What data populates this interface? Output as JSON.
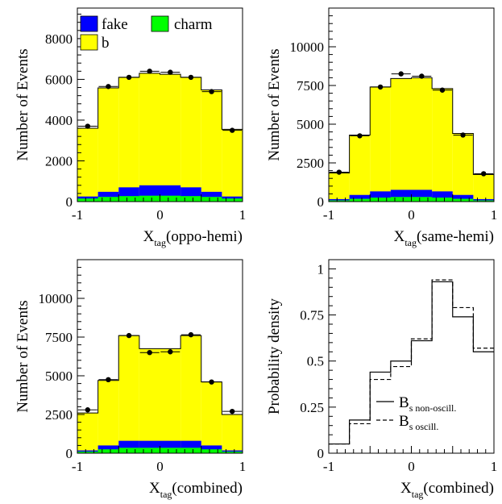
{
  "colors": {
    "b": "#ffff00",
    "fake": "#0000ff",
    "charm": "#00ff00",
    "frame": "#000000"
  },
  "chart_data": [
    {
      "type": "histogram",
      "stacked": true,
      "ylabel": "Number of Events",
      "xlabel": {
        "main": "X",
        "sub": "tag",
        "rest": "(oppo-hemi)"
      },
      "xlim": [
        -1,
        1
      ],
      "ylim": [
        0,
        9500
      ],
      "xticks": [
        -1,
        0,
        1
      ],
      "xtick_labels": [
        "-1",
        "0",
        "1"
      ],
      "yticks": [
        0,
        2000,
        4000,
        6000,
        8000
      ],
      "ytick_labels": [
        "0",
        "2000",
        "4000",
        "6000",
        "8000"
      ],
      "bin_edges": [
        -1,
        -0.75,
        -0.5,
        -0.25,
        0,
        0.25,
        0.5,
        0.75,
        1
      ],
      "series": [
        {
          "name": "charm",
          "color_key": "charm",
          "values": [
            150,
            230,
            270,
            290,
            290,
            270,
            230,
            150
          ]
        },
        {
          "name": "fake",
          "color_key": "fake",
          "values": [
            100,
            250,
            430,
            510,
            510,
            430,
            250,
            100
          ]
        },
        {
          "name": "b",
          "color_key": "b",
          "values": [
            3350,
            5100,
            5400,
            5500,
            5450,
            5400,
            5000,
            3300
          ]
        }
      ],
      "data_points": {
        "x": [
          -0.875,
          -0.625,
          -0.375,
          -0.125,
          0.125,
          0.375,
          0.625,
          0.875
        ],
        "y": [
          3700,
          5650,
          6100,
          6400,
          6350,
          6100,
          5400,
          3500
        ]
      },
      "legend": {
        "placement": "top-left",
        "entries": [
          {
            "label": "fake",
            "color_key": "fake"
          },
          {
            "label": "charm",
            "color_key": "charm"
          },
          {
            "label": "b",
            "color_key": "b"
          }
        ]
      }
    },
    {
      "type": "histogram",
      "stacked": true,
      "ylabel": "Number of Events",
      "xlabel": {
        "main": "X",
        "sub": "tag",
        "rest": "(same-hemi)"
      },
      "xlim": [
        -1,
        1
      ],
      "ylim": [
        0,
        12500
      ],
      "xticks": [
        -1,
        0,
        1
      ],
      "xtick_labels": [
        "-1",
        "0",
        "1"
      ],
      "yticks": [
        0,
        2500,
        5000,
        7500,
        10000
      ],
      "ytick_labels": [
        "0",
        "2500",
        "5000",
        "7500",
        "10000"
      ],
      "bin_edges": [
        -1,
        -0.75,
        -0.5,
        -0.25,
        0,
        0.25,
        0.5,
        0.75,
        1
      ],
      "series": [
        {
          "name": "charm",
          "color_key": "charm",
          "values": [
            80,
            180,
            260,
            300,
            300,
            260,
            180,
            80
          ]
        },
        {
          "name": "fake",
          "color_key": "fake",
          "values": [
            80,
            250,
            400,
            460,
            460,
            400,
            250,
            80
          ]
        },
        {
          "name": "b",
          "color_key": "b",
          "values": [
            1690,
            3870,
            6740,
            7190,
            7240,
            6640,
            3970,
            1590
          ]
        }
      ],
      "data_points": {
        "x": [
          -0.875,
          -0.625,
          -0.375,
          -0.125,
          0.125,
          0.375,
          0.625,
          0.875
        ],
        "y": [
          1900,
          4250,
          7400,
          8250,
          8100,
          7200,
          4300,
          1800
        ]
      }
    },
    {
      "type": "histogram",
      "stacked": true,
      "ylabel": "Number of Events",
      "xlabel": {
        "main": "X",
        "sub": "tag",
        "rest": "(combined)"
      },
      "xlim": [
        -1,
        1
      ],
      "ylim": [
        0,
        12500
      ],
      "xticks": [
        -1,
        0,
        1
      ],
      "xtick_labels": [
        "-1",
        "0",
        "1"
      ],
      "yticks": [
        0,
        2500,
        5000,
        7500,
        10000
      ],
      "ytick_labels": [
        "0",
        "2500",
        "5000",
        "7500",
        "10000"
      ],
      "bin_edges": [
        -1,
        -0.75,
        -0.5,
        -0.25,
        0,
        0.25,
        0.5,
        0.75,
        1
      ],
      "series": [
        {
          "name": "charm",
          "color_key": "charm",
          "values": [
            100,
            250,
            350,
            350,
            350,
            350,
            250,
            100
          ]
        },
        {
          "name": "fake",
          "color_key": "fake",
          "values": [
            80,
            250,
            450,
            450,
            450,
            450,
            250,
            80
          ]
        },
        {
          "name": "b",
          "color_key": "b",
          "values": [
            2420,
            4200,
            6800,
            5950,
            5950,
            6800,
            4100,
            2320
          ]
        }
      ],
      "data_points": {
        "x": [
          -0.875,
          -0.625,
          -0.375,
          -0.125,
          0.125,
          0.375,
          0.625,
          0.875
        ],
        "y": [
          2800,
          4750,
          7600,
          6500,
          6550,
          7650,
          4600,
          2700
        ]
      }
    },
    {
      "type": "step",
      "ylabel": "Probability density",
      "xlabel": {
        "main": "X",
        "sub": "tag",
        "rest": "(combined)"
      },
      "xlim": [
        -1,
        1
      ],
      "ylim": [
        0,
        1.05
      ],
      "xticks": [
        -1,
        0,
        1
      ],
      "xtick_labels": [
        "-1",
        "0",
        "1"
      ],
      "yticks": [
        0,
        0.25,
        0.5,
        0.75,
        1
      ],
      "ytick_labels": [
        "0",
        "0.25",
        "0.5",
        "0.75",
        "1"
      ],
      "bin_edges": [
        -1,
        -0.75,
        -0.5,
        -0.25,
        0,
        0.25,
        0.5,
        0.75,
        1
      ],
      "series": [
        {
          "name": "non-oscill.",
          "legend_main": "B",
          "legend_sub": "s non-oscill.",
          "style": "solid",
          "values": [
            0.05,
            0.18,
            0.44,
            0.5,
            0.61,
            0.93,
            0.74,
            0.55
          ]
        },
        {
          "name": "oscill.",
          "legend_main": "B",
          "legend_sub": "s oscill.",
          "style": "dashed",
          "values": [
            0.05,
            0.16,
            0.4,
            0.47,
            0.62,
            0.94,
            0.79,
            0.57
          ]
        }
      ],
      "legend": {
        "placement": "lower-center"
      }
    }
  ]
}
